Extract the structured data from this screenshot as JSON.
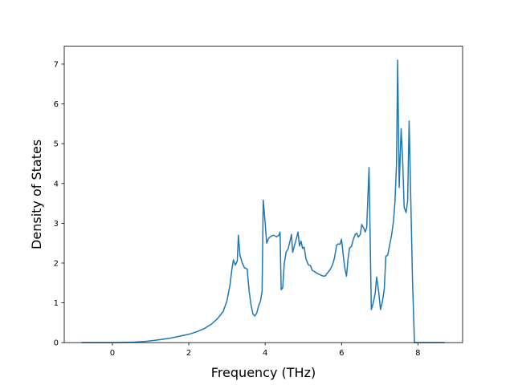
{
  "chart_data": {
    "type": "line",
    "title": "",
    "xlabel": "Frequency (THz)",
    "ylabel": "Density of States",
    "xlim": [
      -1.26,
      9.17
    ],
    "ylim": [
      0,
      7.45
    ],
    "xticks": [
      0,
      2,
      4,
      6,
      8
    ],
    "yticks": [
      0,
      1,
      2,
      3,
      4,
      5,
      6,
      7
    ],
    "grid": false,
    "legend": "none",
    "series": [
      {
        "color": "#1f77b4",
        "points": [
          [
            -0.81,
            0.0
          ],
          [
            0.0,
            0.0
          ],
          [
            0.3,
            0.005
          ],
          [
            0.6,
            0.015
          ],
          [
            0.9,
            0.035
          ],
          [
            1.2,
            0.07
          ],
          [
            1.5,
            0.11
          ],
          [
            1.8,
            0.17
          ],
          [
            2.0,
            0.21
          ],
          [
            2.2,
            0.27
          ],
          [
            2.4,
            0.35
          ],
          [
            2.6,
            0.47
          ],
          [
            2.75,
            0.6
          ],
          [
            2.9,
            0.78
          ],
          [
            3.0,
            1.05
          ],
          [
            3.08,
            1.45
          ],
          [
            3.13,
            1.85
          ],
          [
            3.17,
            2.08
          ],
          [
            3.22,
            1.95
          ],
          [
            3.27,
            2.05
          ],
          [
            3.3,
            2.7
          ],
          [
            3.34,
            2.2
          ],
          [
            3.4,
            2.0
          ],
          [
            3.46,
            1.88
          ],
          [
            3.53,
            1.85
          ],
          [
            3.58,
            1.3
          ],
          [
            3.63,
            0.95
          ],
          [
            3.68,
            0.72
          ],
          [
            3.73,
            0.67
          ],
          [
            3.78,
            0.74
          ],
          [
            3.83,
            0.93
          ],
          [
            3.88,
            1.05
          ],
          [
            3.92,
            1.3
          ],
          [
            3.95,
            3.58
          ],
          [
            4.0,
            3.02
          ],
          [
            4.04,
            2.5
          ],
          [
            4.09,
            2.62
          ],
          [
            4.15,
            2.67
          ],
          [
            4.22,
            2.7
          ],
          [
            4.3,
            2.66
          ],
          [
            4.36,
            2.7
          ],
          [
            4.39,
            2.78
          ],
          [
            4.42,
            1.33
          ],
          [
            4.46,
            1.38
          ],
          [
            4.5,
            1.98
          ],
          [
            4.55,
            2.28
          ],
          [
            4.6,
            2.35
          ],
          [
            4.65,
            2.55
          ],
          [
            4.69,
            2.72
          ],
          [
            4.72,
            2.27
          ],
          [
            4.77,
            2.45
          ],
          [
            4.82,
            2.62
          ],
          [
            4.86,
            2.78
          ],
          [
            4.9,
            2.43
          ],
          [
            4.94,
            2.55
          ],
          [
            4.98,
            2.37
          ],
          [
            5.02,
            2.4
          ],
          [
            5.07,
            2.1
          ],
          [
            5.13,
            1.96
          ],
          [
            5.19,
            1.93
          ],
          [
            5.23,
            1.82
          ],
          [
            5.3,
            1.78
          ],
          [
            5.38,
            1.73
          ],
          [
            5.45,
            1.7
          ],
          [
            5.52,
            1.67
          ],
          [
            5.58,
            1.68
          ],
          [
            5.63,
            1.75
          ],
          [
            5.7,
            1.83
          ],
          [
            5.77,
            1.97
          ],
          [
            5.82,
            2.15
          ],
          [
            5.87,
            2.45
          ],
          [
            5.91,
            2.48
          ],
          [
            5.96,
            2.47
          ],
          [
            6.0,
            2.6
          ],
          [
            6.05,
            2.15
          ],
          [
            6.09,
            1.85
          ],
          [
            6.13,
            1.67
          ],
          [
            6.17,
            2.1
          ],
          [
            6.21,
            2.38
          ],
          [
            6.26,
            2.42
          ],
          [
            6.31,
            2.6
          ],
          [
            6.36,
            2.72
          ],
          [
            6.4,
            2.75
          ],
          [
            6.44,
            2.65
          ],
          [
            6.49,
            2.72
          ],
          [
            6.53,
            2.97
          ],
          [
            6.58,
            2.88
          ],
          [
            6.62,
            2.78
          ],
          [
            6.66,
            2.9
          ],
          [
            6.72,
            4.4
          ],
          [
            6.78,
            0.83
          ],
          [
            6.83,
            1.0
          ],
          [
            6.88,
            1.23
          ],
          [
            6.92,
            1.65
          ],
          [
            6.97,
            1.3
          ],
          [
            7.02,
            0.83
          ],
          [
            7.07,
            1.03
          ],
          [
            7.12,
            1.35
          ],
          [
            7.16,
            2.17
          ],
          [
            7.21,
            2.2
          ],
          [
            7.26,
            2.45
          ],
          [
            7.31,
            2.7
          ],
          [
            7.36,
            3.05
          ],
          [
            7.4,
            3.55
          ],
          [
            7.44,
            4.5
          ],
          [
            7.47,
            7.1
          ],
          [
            7.51,
            3.9
          ],
          [
            7.56,
            5.38
          ],
          [
            7.6,
            4.6
          ],
          [
            7.64,
            3.4
          ],
          [
            7.69,
            3.27
          ],
          [
            7.73,
            3.55
          ],
          [
            7.77,
            5.57
          ],
          [
            7.82,
            3.3
          ],
          [
            7.86,
            1.5
          ],
          [
            7.91,
            0.0
          ],
          [
            8.0,
            0.0
          ],
          [
            8.7,
            0.0
          ]
        ]
      }
    ]
  }
}
